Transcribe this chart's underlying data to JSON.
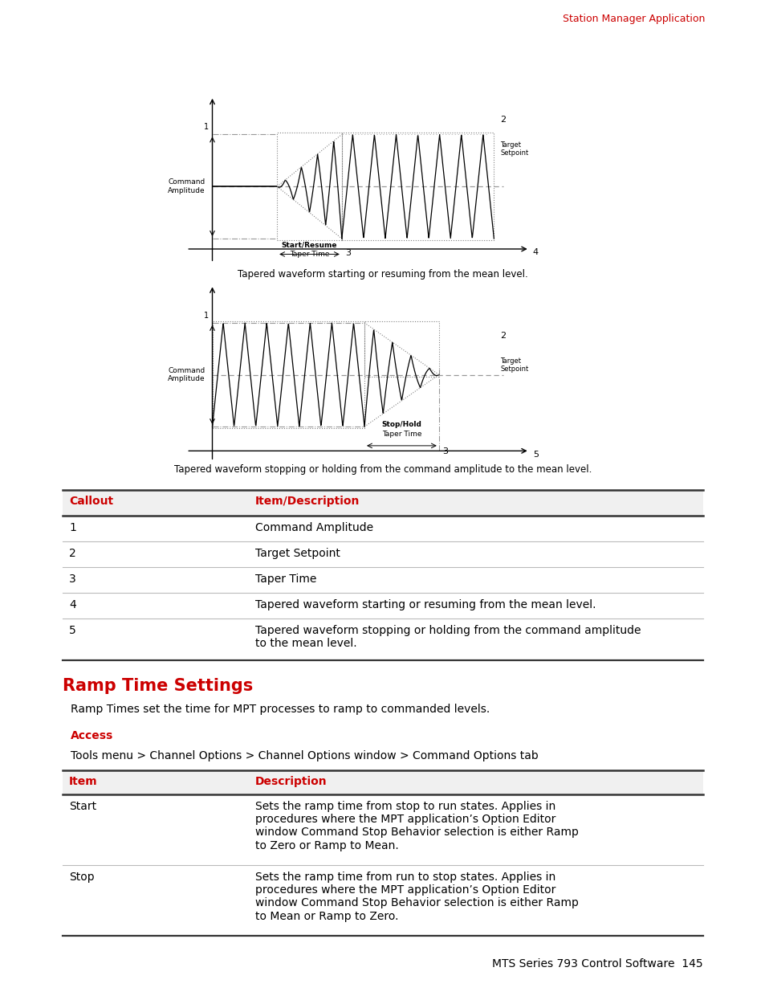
{
  "header_text": "Station Manager Application",
  "header_color": "#cc0000",
  "bg_color": "#ffffff",
  "diagram1_caption": "Tapered waveform starting or resuming from the mean level.",
  "diagram2_caption": "Tapered waveform stopping or holding from the command amplitude to the mean level.",
  "table1_headers": [
    "Callout",
    "Item/Description"
  ],
  "table1_header_color": "#cc0000",
  "table1_rows": [
    [
      "1",
      "Command Amplitude"
    ],
    [
      "2",
      "Target Setpoint"
    ],
    [
      "3",
      "Taper Time"
    ],
    [
      "4",
      "Tapered waveform starting or resuming from the mean level."
    ],
    [
      "5",
      "Tapered waveform stopping or holding from the command amplitude\nto the mean level."
    ]
  ],
  "section_title": "Ramp Time Settings",
  "section_title_color": "#cc0000",
  "section_body": "Ramp Times set the time for MPT processes to ramp to commanded levels.",
  "access_label": "Access",
  "access_label_color": "#cc0000",
  "access_text": "Tools menu > Channel Options > Channel Options window > Command Options tab",
  "table2_headers": [
    "Item",
    "Description"
  ],
  "table2_header_color": "#cc0000",
  "table2_rows": [
    [
      "Start",
      "Sets the ramp time from stop to run states. Applies in\nprocedures where the MPT application’s Option Editor\nwindow Command Stop Behavior selection is either Ramp\nto Zero or Ramp to Mean."
    ],
    [
      "Stop",
      "Sets the ramp time from run to stop states. Applies in\nprocedures where the MPT application’s Option Editor\nwindow Command Stop Behavior selection is either Ramp\nto Mean or Ramp to Zero."
    ]
  ],
  "footer_text": "MTS Series 793 Control Software  145",
  "line_color": "#333333",
  "divider_color": "#aaaaaa"
}
